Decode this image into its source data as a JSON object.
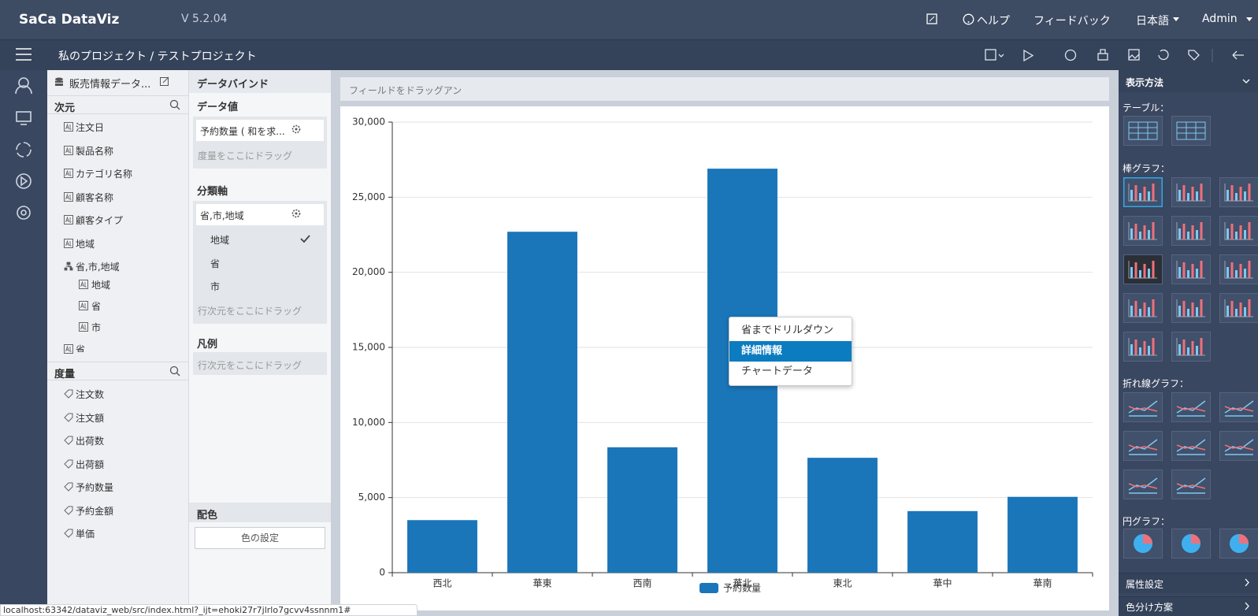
{
  "header": {
    "logo": "SaCa DataViz",
    "version": "V 5.2.04",
    "help": "ヘルプ",
    "feedback": "フィードバック",
    "language": "日本語",
    "user": "Admin"
  },
  "toolbar": {
    "breadcrumb": "私のプロジェクト / テストプロジェクト"
  },
  "fields_panel": {
    "dataset": "販売情報データ...",
    "dimensions_title": "次元",
    "dimensions": [
      "注文日",
      "製品名称",
      "カテゴリ名称",
      "顧客名称",
      "顧客タイプ",
      "地域",
      "省,市,地域"
    ],
    "hierarchy_children": [
      "地域",
      "省",
      "市"
    ],
    "dimensions_more": "省",
    "measures_title": "度量",
    "measures": [
      "注文数",
      "注文額",
      "出荷数",
      "出荷額",
      "予約数量",
      "予約金額",
      "単価"
    ]
  },
  "bind_panel": {
    "title": "データバインド",
    "values_title": "データ値",
    "values_field": "予約数量 ( 和を求...",
    "values_hint": "度量をここにドラッグ",
    "axis_title": "分類軸",
    "axis_field": "省,市,地域",
    "axis_levels": [
      "地域",
      "省",
      "市"
    ],
    "axis_hint": "行次元をここにドラッグ",
    "legend_title": "凡例",
    "legend_hint": "行次元をここにドラッグ",
    "color_title": "配色",
    "color_button": "色の設定"
  },
  "canvas": {
    "drop_hint": "フィールドをドラッグアン"
  },
  "chart_data": {
    "type": "bar",
    "categories": [
      "西北",
      "華東",
      "西南",
      "華北",
      "東北",
      "華中",
      "華南"
    ],
    "series": [
      {
        "name": "予約数量",
        "color": "#1a76b9",
        "values": [
          3500,
          22700,
          8350,
          26900,
          7650,
          4100,
          5050
        ]
      }
    ],
    "ylim": [
      0,
      30000
    ],
    "yticks": [
      0,
      {
        "value": 5000,
        "label": "5,000"
      },
      {
        "value": 10000,
        "label": "10,000"
      },
      {
        "value": 15000,
        "label": "15,000"
      },
      {
        "value": 20000,
        "label": "20,000"
      },
      {
        "value": 25000,
        "label": "25,000"
      },
      {
        "value": 30000,
        "label": "30,000"
      }
    ],
    "grid": true
  },
  "context_menu": {
    "items": [
      "省までドリルダウン",
      "詳細情報",
      "チャートデータ"
    ]
  },
  "right_panel": {
    "title": "表示方法",
    "table": "テーブル：",
    "bar": "棒グラフ：",
    "line": "折れ線グラフ：",
    "pie": "円グラフ：",
    "attributes": "属性設定",
    "color_scheme": "色分け方案"
  },
  "status_bar": {
    "url": "localhost:63342/dataviz_web/src/index.html?_ijt=ehoki27r7jlrlo7gcvv4ssnnm1#"
  }
}
